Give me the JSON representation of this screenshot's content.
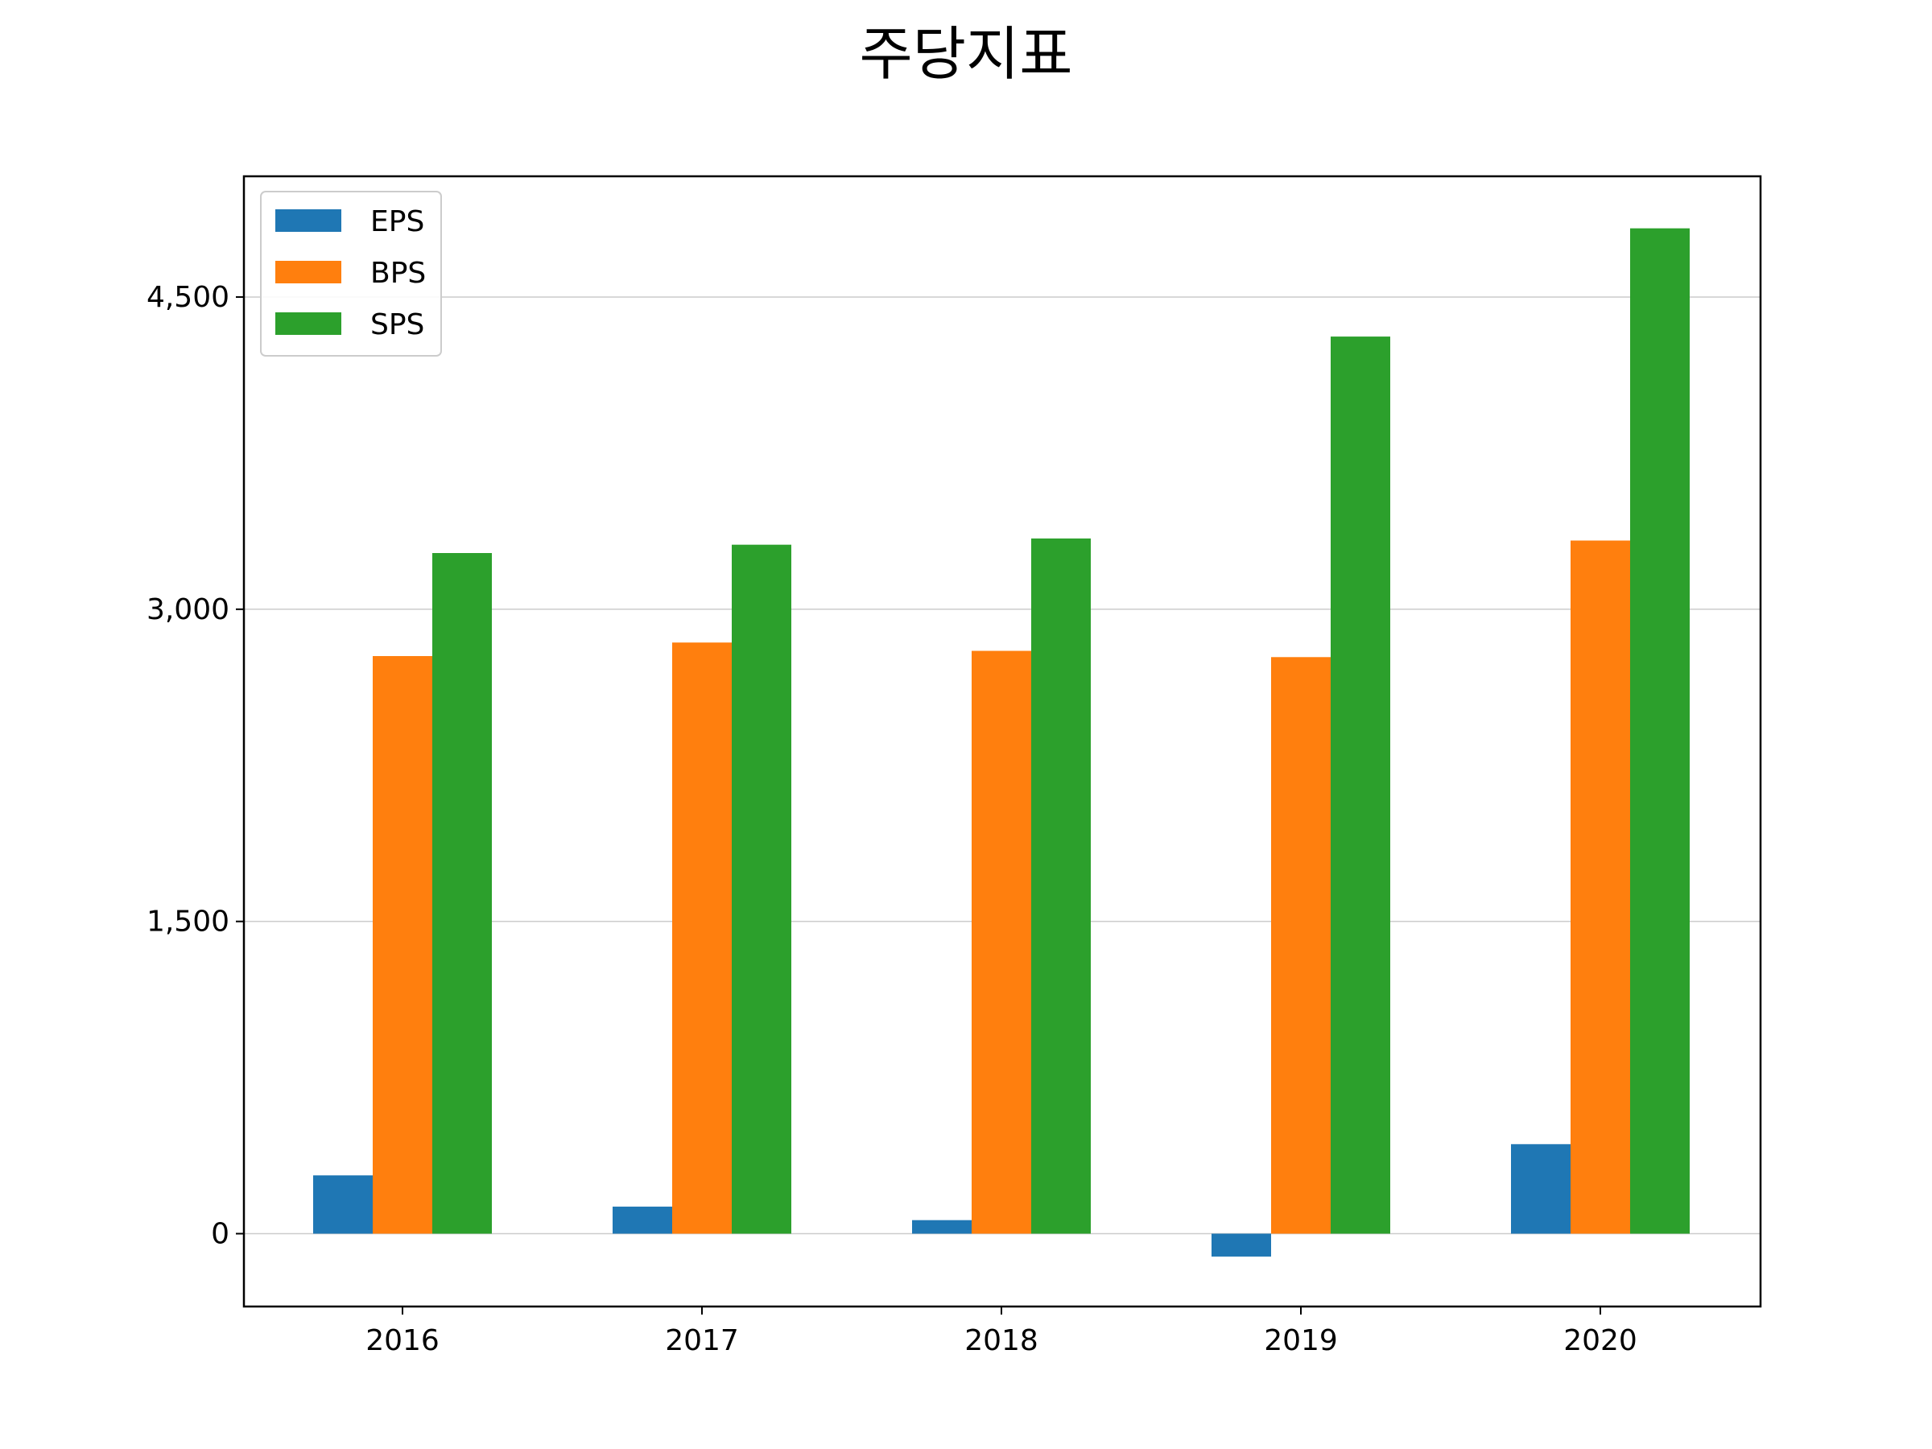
{
  "chart_data": {
    "type": "bar",
    "title": "주당지표",
    "xlabel": "",
    "ylabel": "",
    "categories": [
      "2016",
      "2017",
      "2018",
      "2019",
      "2020"
    ],
    "series": [
      {
        "name": "EPS",
        "color": "#1f77b4",
        "values": [
          280,
          130,
          65,
          -110,
          430
        ]
      },
      {
        "name": "BPS",
        "color": "#ff7f0e",
        "values": [
          2775,
          2840,
          2800,
          2770,
          3330
        ]
      },
      {
        "name": "SPS",
        "color": "#2ca02c",
        "values": [
          3270,
          3310,
          3340,
          4310,
          4830
        ]
      }
    ],
    "yticks": [
      0,
      1500,
      3000,
      4500
    ],
    "ytick_labels": [
      "0",
      "1,500",
      "3,000",
      "4,500"
    ],
    "ylim": [
      -350,
      5080
    ],
    "grid": "y",
    "legend_position": "upper-left"
  }
}
